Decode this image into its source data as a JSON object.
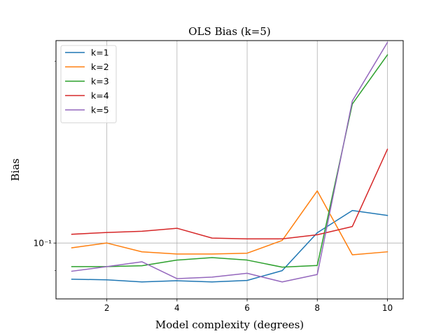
{
  "chart_data": {
    "type": "line",
    "title": "OLS Bias (k=5)",
    "xlabel": "Model complexity (degrees)",
    "ylabel": "Bias",
    "x": [
      1,
      2,
      3,
      4,
      5,
      6,
      7,
      8,
      9,
      10
    ],
    "xlim": [
      0.55,
      10.45
    ],
    "ylim": [
      0.0808,
      0.2165
    ],
    "yscale": "log",
    "xticks": [
      2,
      4,
      6,
      8,
      10
    ],
    "xtick_labels": [
      "2",
      "4",
      "6",
      "8",
      "10"
    ],
    "yticks": [
      0.1
    ],
    "ytick_labels": [
      "10⁻¹"
    ],
    "grid": true,
    "legend_position": "upper left",
    "series": [
      {
        "name": "k=1",
        "color": "#1f77b4",
        "values": [
          0.0871,
          0.0869,
          0.0862,
          0.0866,
          0.0862,
          0.0867,
          0.09,
          0.104,
          0.1132,
          0.1111
        ]
      },
      {
        "name": "k=2",
        "color": "#ff7f0e",
        "values": [
          0.0982,
          0.1,
          0.0967,
          0.0959,
          0.0959,
          0.0962,
          0.101,
          0.122,
          0.0956,
          0.0967
        ]
      },
      {
        "name": "k=3",
        "color": "#2ca02c",
        "values": [
          0.0914,
          0.0914,
          0.0917,
          0.0937,
          0.0946,
          0.0937,
          0.0912,
          0.0918,
          0.17,
          0.205
        ]
      },
      {
        "name": "k=4",
        "color": "#d62728",
        "values": [
          0.1034,
          0.1041,
          0.1046,
          0.1058,
          0.1019,
          0.1016,
          0.1016,
          0.1032,
          0.1065,
          0.143
        ]
      },
      {
        "name": "k=5",
        "color": "#9467bd",
        "values": [
          0.0898,
          0.0914,
          0.0931,
          0.0873,
          0.0878,
          0.0891,
          0.0862,
          0.0887,
          0.172,
          0.215
        ]
      }
    ]
  }
}
